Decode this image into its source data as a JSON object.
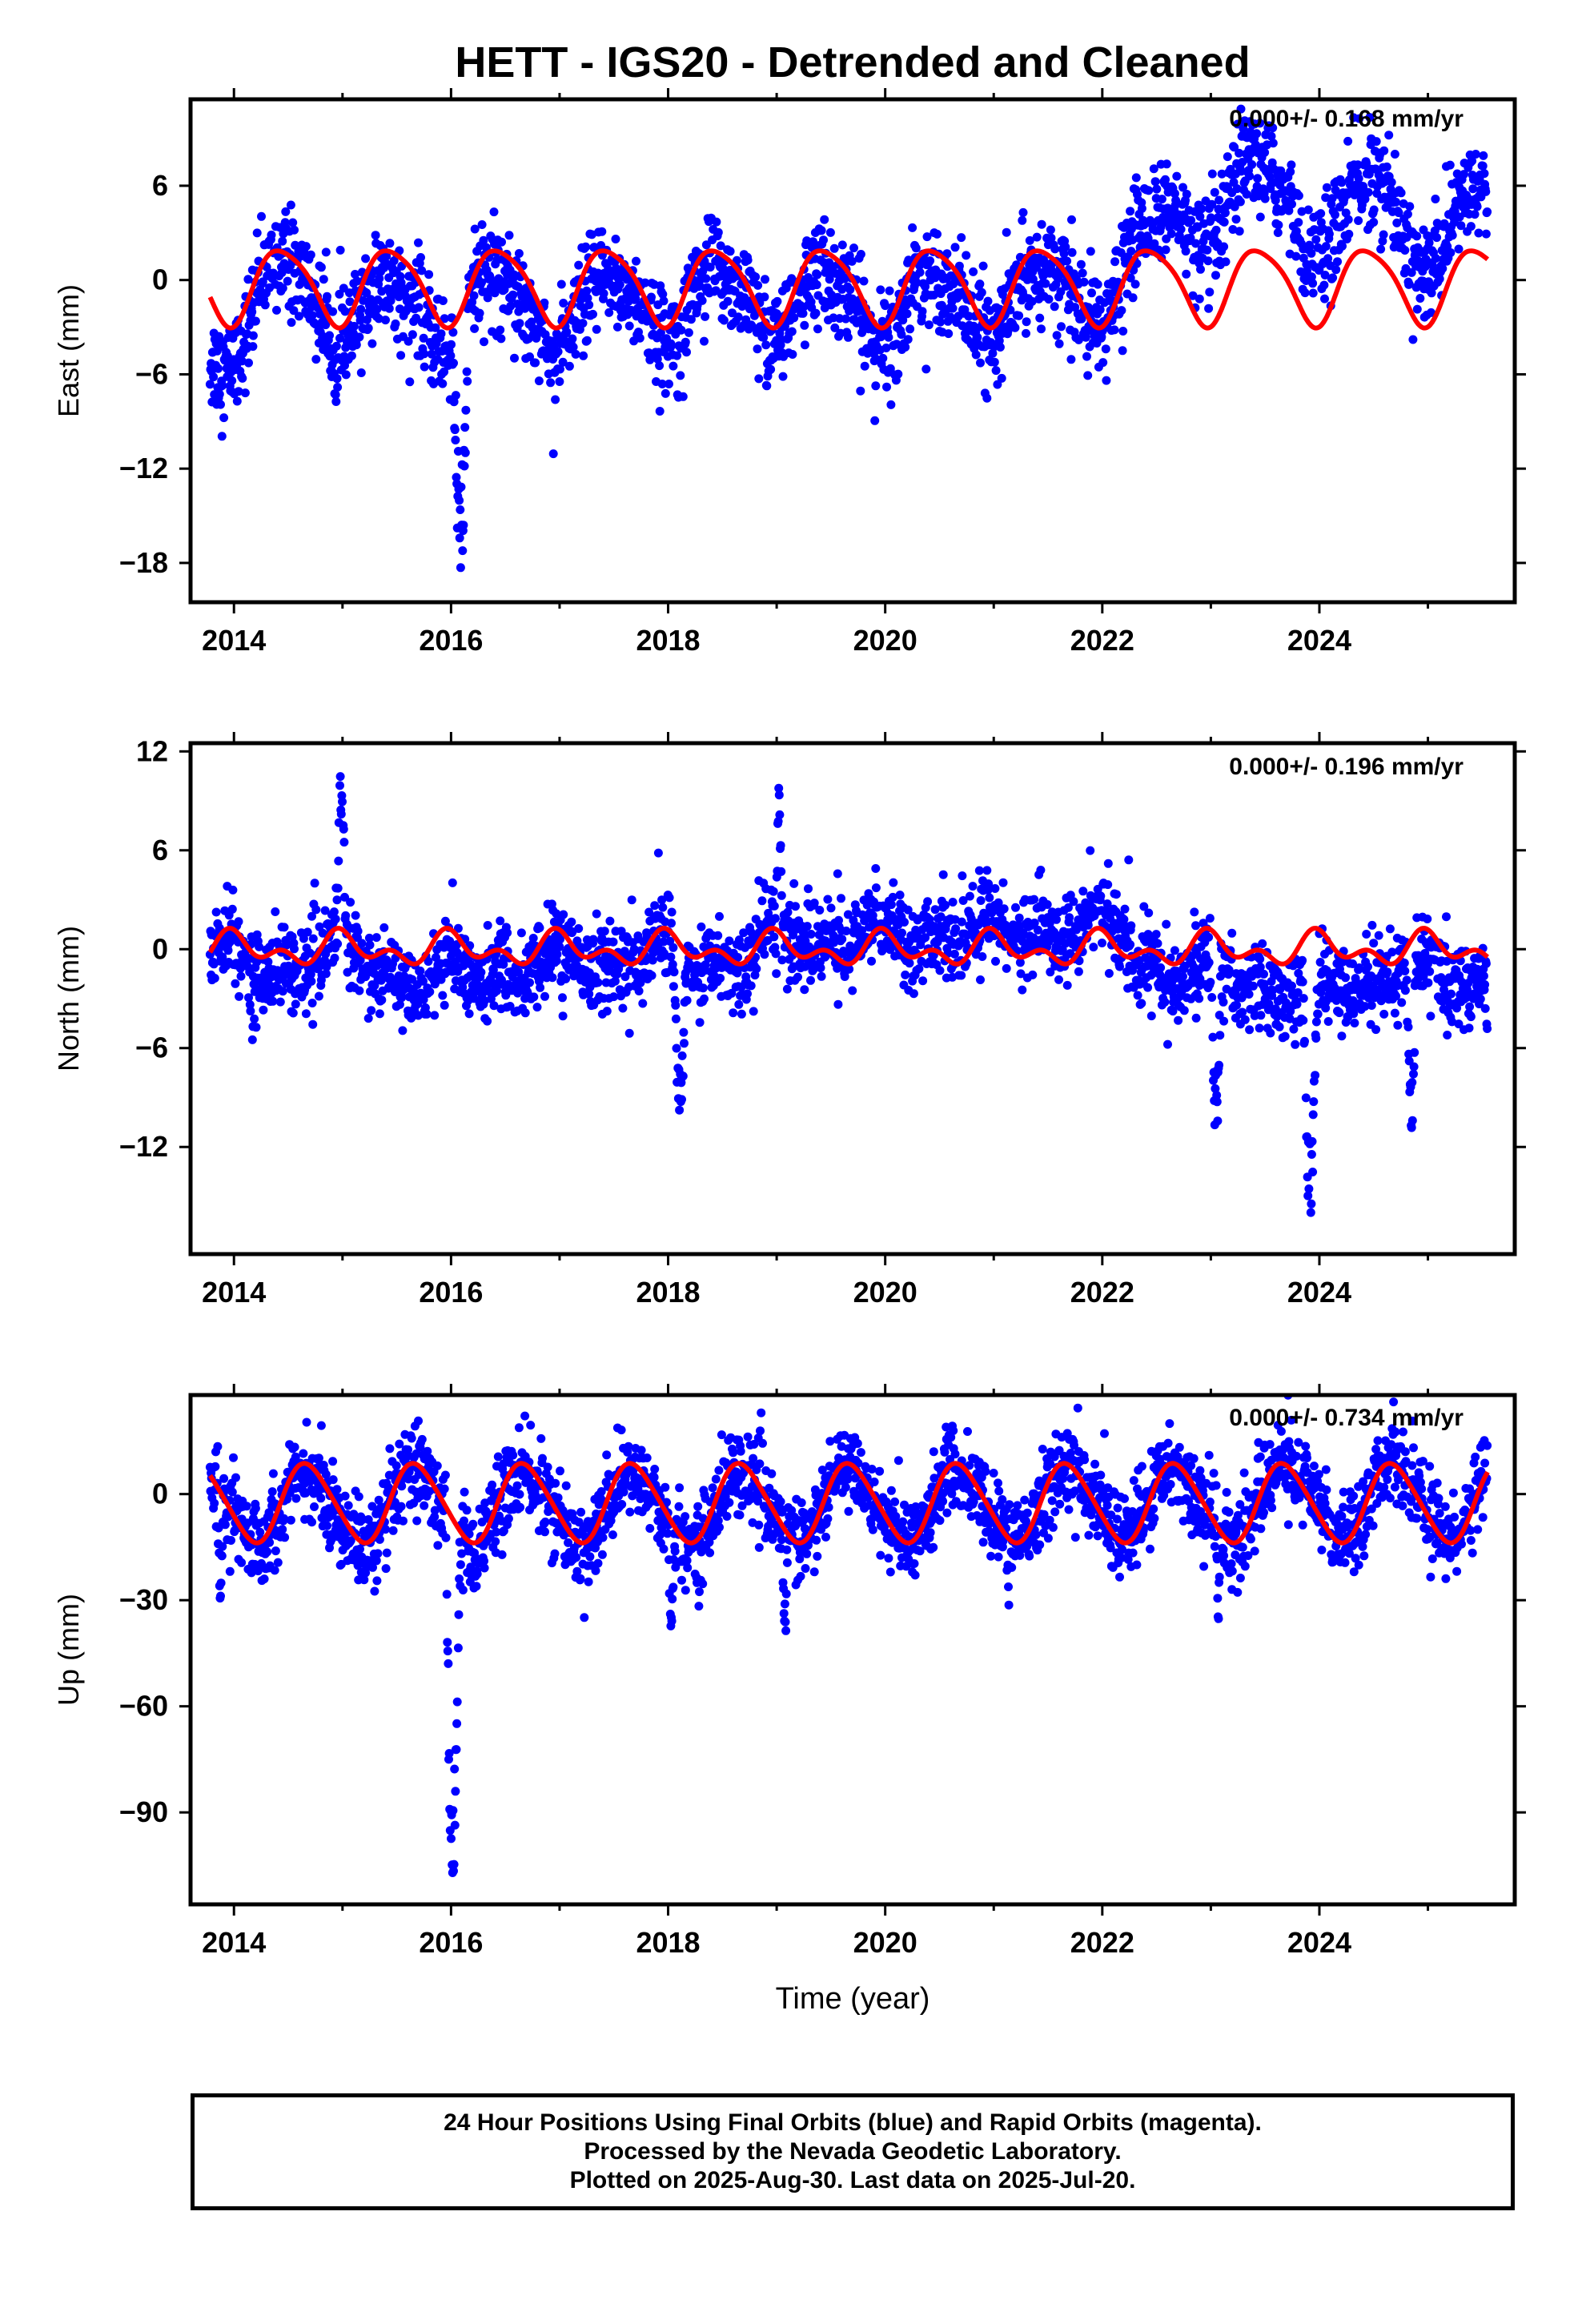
{
  "colors": {
    "data_points": "#0000ff",
    "seasonal_fit": "#ff0000",
    "frame": "#000000"
  },
  "chart_data": [
    {
      "type": "scatter",
      "title": "HETT - IGS20 - Detrended and Cleaned",
      "ylabel": "East (mm)",
      "xlabel": "",
      "velocity_label": "0.000+/- 0.168 mm/yr",
      "xlim": [
        2013.6,
        2025.8
      ],
      "ylim": [
        -20.5,
        11.5
      ],
      "xticks": [
        2014,
        2016,
        2018,
        2020,
        2022,
        2024
      ],
      "yticks": [
        6,
        0,
        -6,
        -12,
        -18
      ],
      "ytick_labels": [
        "6",
        "0",
        "−6",
        "−12",
        "−18"
      ],
      "grid": false,
      "series": [
        {
          "kind": "points",
          "color": "#0000ff",
          "baseline": [
            [
              2013.8,
              -4
            ],
            [
              2014.4,
              0
            ],
            [
              2015.0,
              -1.5
            ],
            [
              2015.8,
              -2
            ],
            [
              2016.3,
              -1
            ],
            [
              2017.0,
              -2
            ],
            [
              2018.0,
              -1
            ],
            [
              2019.0,
              -1
            ],
            [
              2020.0,
              -1.5
            ],
            [
              2021.0,
              -1
            ],
            [
              2022.0,
              -0.5
            ],
            [
              2022.6,
              3.5
            ],
            [
              2023.4,
              6
            ],
            [
              2024.0,
              4
            ],
            [
              2024.6,
              5
            ],
            [
              2025.0,
              3
            ],
            [
              2025.5,
              4
            ]
          ],
          "noise": 1.6,
          "excursions": [
            {
              "start": 2016.02,
              "end": 2016.2,
              "depth": -19.5
            }
          ]
        },
        {
          "kind": "curve",
          "color": "#ff0000",
          "fit": {
            "offset": -0.3,
            "annual_amp": 2.4,
            "annual_peak": 2014.45,
            "semi_amp": 0.4,
            "semi_peak": 2014.25
          }
        }
      ]
    },
    {
      "type": "scatter",
      "ylabel": "North (mm)",
      "xlabel": "",
      "velocity_label": "0.000+/- 0.196 mm/yr",
      "xlim": [
        2013.6,
        2025.8
      ],
      "ylim": [
        -18.5,
        12.5
      ],
      "xticks": [
        2014,
        2016,
        2018,
        2020,
        2022,
        2024
      ],
      "yticks": [
        12,
        6,
        0,
        -6,
        -12
      ],
      "ytick_labels": [
        "12",
        "6",
        "0",
        "−6",
        "−12"
      ],
      "grid": false,
      "series": [
        {
          "kind": "points",
          "color": "#0000ff",
          "baseline": [
            [
              2013.8,
              0
            ],
            [
              2014.2,
              -1.5
            ],
            [
              2015.0,
              0
            ],
            [
              2015.5,
              -2
            ],
            [
              2016.2,
              -1.5
            ],
            [
              2017.0,
              -1
            ],
            [
              2018.0,
              0
            ],
            [
              2018.3,
              -1
            ],
            [
              2019.0,
              0.5
            ],
            [
              2020.0,
              1
            ],
            [
              2021.0,
              1
            ],
            [
              2022.0,
              1.5
            ],
            [
              2022.6,
              -1.5
            ],
            [
              2023.4,
              -2
            ],
            [
              2024.0,
              -3
            ],
            [
              2024.6,
              -1
            ],
            [
              2025.5,
              -2
            ]
          ],
          "noise": 1.3,
          "excursions": [
            {
              "start": 2014.95,
              "end": 2015.05,
              "depth": 12
            },
            {
              "start": 2018.05,
              "end": 2018.2,
              "depth": -11
            },
            {
              "start": 2019.0,
              "end": 2019.06,
              "depth": 10.5
            },
            {
              "start": 2023.0,
              "end": 2023.12,
              "depth": -12
            },
            {
              "start": 2023.85,
              "end": 2024.02,
              "depth": -17
            },
            {
              "start": 2024.8,
              "end": 2024.92,
              "depth": -12
            }
          ]
        },
        {
          "kind": "curve",
          "color": "#ff0000",
          "fit": {
            "offset": 0,
            "annual_amp": 0.7,
            "annual_peak": 2014.0,
            "semi_amp": 0.6,
            "semi_peak": 2013.95
          }
        }
      ]
    },
    {
      "type": "scatter",
      "ylabel": "Up (mm)",
      "xlabel": "Time (year)",
      "velocity_label": "0.000+/- 0.734 mm/yr",
      "xlim": [
        2013.6,
        2025.8
      ],
      "ylim": [
        -116,
        28
      ],
      "xticks": [
        2014,
        2016,
        2018,
        2020,
        2022,
        2024
      ],
      "yticks": [
        0,
        -30,
        -60,
        -90
      ],
      "ytick_labels": [
        "0",
        "−30",
        "−60",
        "−90"
      ],
      "grid": false,
      "series": [
        {
          "kind": "points",
          "color": "#0000ff",
          "baseline": [
            [
              2013.8,
              0
            ],
            [
              2015.0,
              -3
            ],
            [
              2016.0,
              -2
            ],
            [
              2017.0,
              -2
            ],
            [
              2018.0,
              -3
            ],
            [
              2019.0,
              -1
            ],
            [
              2020.0,
              -1
            ],
            [
              2021.0,
              -2
            ],
            [
              2022.0,
              1
            ],
            [
              2023.0,
              -1
            ],
            [
              2024.0,
              2
            ],
            [
              2025.0,
              0
            ],
            [
              2025.5,
              2
            ]
          ],
          "noise": 6,
          "excursions": [
            {
              "start": 2015.95,
              "end": 2016.12,
              "depth": -113
            },
            {
              "start": 2019.05,
              "end": 2019.12,
              "depth": -46
            },
            {
              "start": 2013.85,
              "end": 2013.92,
              "depth": -31
            },
            {
              "start": 2018.0,
              "end": 2018.08,
              "depth": -40
            },
            {
              "start": 2023.05,
              "end": 2023.1,
              "depth": -41
            }
          ]
        },
        {
          "kind": "curve",
          "color": "#ff0000",
          "fit": {
            "offset": -2.5,
            "annual_amp": 11,
            "annual_peak": 2014.68,
            "semi_amp": 1.2,
            "semi_peak": 2014.55
          }
        }
      ]
    }
  ],
  "footer": {
    "line1": "24 Hour Positions Using Final Orbits (blue) and Rapid Orbits (magenta).",
    "line2": "Processed by the Nevada Geodetic Laboratory.",
    "line3": "Plotted on 2025-Aug-30. Last data on 2025-Jul-20."
  }
}
